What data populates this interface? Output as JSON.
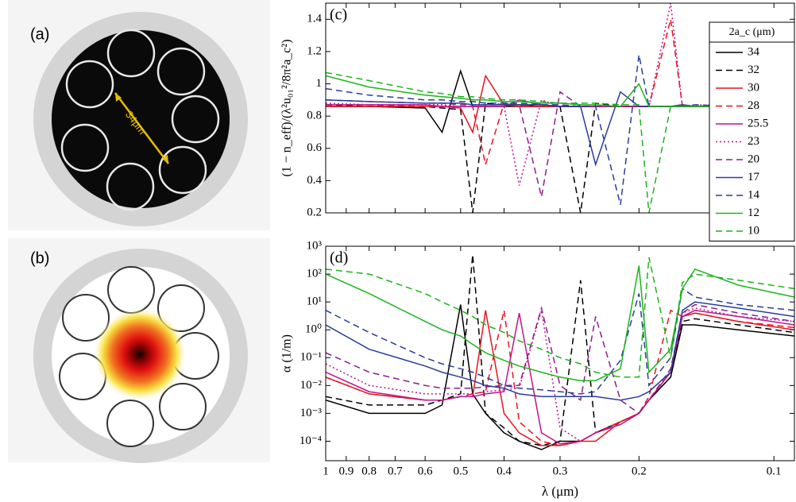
{
  "panels": {
    "a": {
      "label": "(a)",
      "annotation": "34μm"
    },
    "b": {
      "label": "(b)"
    }
  },
  "chart_data": [
    {
      "type": "line",
      "label": "(c)",
      "ylabel": "(1 − n_eff)/(λ²u₀₁²/8π²a_c²)",
      "legend_title": "2a_c (μm)",
      "legend": "right",
      "xscale": "log",
      "x": [
        1,
        0.8,
        0.6,
        0.55,
        0.5,
        0.47,
        0.44,
        0.4,
        0.37,
        0.33,
        0.3,
        0.27,
        0.25,
        0.22,
        0.2,
        0.19,
        0.17,
        0.16,
        0.15,
        0.12,
        0.09
      ],
      "xlim": [
        1,
        0.09
      ],
      "xticks": [
        1,
        0.9,
        0.8,
        0.7,
        0.6,
        0.5,
        0.4,
        0.3,
        0.2,
        0.1
      ],
      "ylim": [
        0.2,
        1.5
      ],
      "yticks": [
        0.2,
        0.4,
        0.6,
        0.8,
        1,
        1.2,
        1.4
      ],
      "series": [
        {
          "name": "34",
          "color": "#000000",
          "dash": "solid",
          "values": [
            0.86,
            0.86,
            0.85,
            0.7,
            1.08,
            0.86,
            0.86,
            0.86,
            0.86,
            0.86,
            0.86,
            0.86,
            0.86,
            0.86,
            0.86,
            0.86,
            0.86,
            0.86,
            0.86,
            0.86,
            0.86
          ]
        },
        {
          "name": "32",
          "color": "#000000",
          "dash": "dashed",
          "values": [
            0.87,
            0.86,
            0.86,
            0.85,
            0.84,
            0.2,
            0.88,
            0.87,
            0.87,
            0.86,
            0.86,
            0.2,
            0.88,
            0.86,
            0.86,
            0.86,
            0.86,
            0.86,
            0.86,
            0.86,
            0.86
          ]
        },
        {
          "name": "30",
          "color": "#e8141c",
          "dash": "solid",
          "values": [
            0.86,
            0.86,
            0.86,
            0.86,
            0.85,
            0.7,
            1.05,
            0.87,
            0.86,
            0.86,
            0.86,
            0.86,
            0.86,
            0.86,
            0.86,
            0.86,
            0.86,
            0.86,
            0.86,
            0.86,
            0.86
          ]
        },
        {
          "name": "28",
          "color": "#e8141c",
          "dash": "dashed",
          "values": [
            0.87,
            0.87,
            0.86,
            0.86,
            0.86,
            0.86,
            0.5,
            0.88,
            0.87,
            0.86,
            0.86,
            0.86,
            0.86,
            0.86,
            0.86,
            0.86,
            1.4,
            0.86,
            0.86,
            0.86,
            0.86
          ]
        },
        {
          "name": "25.5",
          "color": "#c0148c",
          "dash": "solid",
          "values": [
            0.87,
            0.87,
            0.87,
            0.86,
            0.86,
            0.86,
            0.86,
            0.86,
            0.9,
            0.87,
            0.86,
            0.86,
            0.86,
            0.86,
            0.86,
            0.86,
            0.86,
            0.87,
            0.86,
            0.86,
            0.86
          ]
        },
        {
          "name": "23",
          "color": "#c0148c",
          "dash": "dotted",
          "values": [
            0.88,
            0.87,
            0.87,
            0.87,
            0.86,
            0.86,
            0.86,
            0.86,
            0.37,
            0.9,
            0.86,
            0.86,
            0.86,
            0.86,
            0.86,
            0.86,
            1.5,
            0.86,
            0.87,
            0.86,
            0.86
          ]
        },
        {
          "name": "20",
          "color": "#8c1e8c",
          "dash": "dashed",
          "values": [
            0.9,
            0.89,
            0.88,
            0.88,
            0.87,
            0.87,
            0.87,
            0.87,
            0.87,
            0.3,
            0.95,
            0.86,
            0.86,
            0.86,
            0.86,
            0.86,
            0.86,
            0.86,
            0.86,
            0.86,
            0.86
          ]
        },
        {
          "name": "17",
          "color": "#2a3c9c",
          "dash": "solid",
          "values": [
            0.9,
            0.89,
            0.88,
            0.88,
            0.88,
            0.87,
            0.87,
            0.87,
            0.87,
            0.87,
            0.86,
            0.86,
            0.5,
            0.95,
            0.86,
            0.86,
            0.86,
            0.87,
            0.86,
            0.86,
            0.86
          ]
        },
        {
          "name": "14",
          "color": "#2a3c9c",
          "dash": "dashed",
          "values": [
            0.97,
            0.93,
            0.9,
            0.9,
            0.89,
            0.89,
            0.88,
            0.88,
            0.88,
            0.87,
            0.87,
            0.86,
            0.86,
            0.25,
            1.18,
            0.86,
            0.86,
            0.86,
            0.87,
            0.86,
            0.86
          ]
        },
        {
          "name": "12",
          "color": "#1cb41c",
          "dash": "solid",
          "values": [
            1.05,
            0.98,
            0.93,
            0.92,
            0.91,
            0.9,
            0.9,
            0.89,
            0.89,
            0.88,
            0.88,
            0.87,
            0.87,
            0.86,
            1.0,
            0.86,
            0.86,
            0.86,
            0.86,
            0.86,
            0.86
          ]
        },
        {
          "name": "10",
          "color": "#1cb41c",
          "dash": "dashed",
          "values": [
            1.07,
            1.02,
            0.95,
            0.94,
            0.92,
            0.92,
            0.91,
            0.9,
            0.9,
            0.89,
            0.88,
            0.88,
            0.88,
            0.87,
            0.87,
            0.2,
            0.86,
            0.86,
            0.86,
            0.86,
            0.86
          ]
        }
      ]
    },
    {
      "type": "line",
      "label": "(d)",
      "ylabel": "α (1/m)",
      "xlabel": "λ (μm)",
      "xscale": "log",
      "yscale": "log",
      "x": [
        1,
        0.8,
        0.6,
        0.55,
        0.5,
        0.47,
        0.44,
        0.4,
        0.37,
        0.33,
        0.3,
        0.27,
        0.25,
        0.22,
        0.2,
        0.19,
        0.17,
        0.16,
        0.15,
        0.12,
        0.09
      ],
      "xlim": [
        1,
        0.09
      ],
      "xticks": [
        1,
        0.9,
        0.8,
        0.7,
        0.6,
        0.5,
        0.4,
        0.3,
        0.2,
        0.1
      ],
      "ylim": [
        2e-05,
        1000
      ],
      "yticks": [
        {
          "value": 0.0001,
          "label": "10⁻⁴"
        },
        {
          "value": 0.001,
          "label": "10⁻³"
        },
        {
          "value": 0.01,
          "label": "10⁻²"
        },
        {
          "value": 0.1,
          "label": "10⁻¹"
        },
        {
          "value": 1,
          "label": "10⁰"
        },
        {
          "value": 10,
          "label": "10¹"
        },
        {
          "value": 100,
          "label": "10²"
        },
        {
          "value": 1000,
          "label": "10³"
        }
      ],
      "series": [
        {
          "color": "#000000",
          "dash": "solid",
          "values": [
            0.003,
            0.001,
            0.001,
            0.002,
            8,
            0.005,
            0.001,
            0.0002,
            0.0001,
            5e-05,
            0.0001,
            0.0001,
            0.0002,
            0.0005,
            0.001,
            0.003,
            0.02,
            1.5,
            1.5,
            1,
            0.6
          ]
        },
        {
          "color": "#000000",
          "dash": "dashed",
          "values": [
            0.004,
            0.002,
            0.002,
            0.003,
            0.005,
            500,
            0.001,
            0.0003,
            0.0001,
            7e-05,
            0.0001,
            60,
            0.0002,
            0.0005,
            0.001,
            0.003,
            0.02,
            2,
            2.5,
            1.5,
            0.8
          ]
        },
        {
          "color": "#e8141c",
          "dash": "solid",
          "values": [
            0.02,
            0.005,
            0.003,
            0.003,
            0.004,
            0.004,
            5,
            0.001,
            0.0002,
            7e-05,
            7e-05,
            0.0001,
            0.0001,
            0.0005,
            0.001,
            0.003,
            0.03,
            3,
            4,
            2,
            1
          ]
        },
        {
          "color": "#e8141c",
          "dash": "dashed",
          "values": [
            0.02,
            0.005,
            0.003,
            0.003,
            0.004,
            0.005,
            0.006,
            5,
            0.0005,
            0.0001,
            7e-05,
            0.0001,
            0.0002,
            0.0005,
            0.001,
            0.004,
            5,
            3,
            4,
            2,
            1.2
          ]
        },
        {
          "color": "#c0148c",
          "dash": "solid",
          "values": [
            0.03,
            0.006,
            0.003,
            0.003,
            0.004,
            0.004,
            0.005,
            0.006,
            4,
            0.0002,
            8e-05,
            0.0001,
            0.0002,
            0.0004,
            0.001,
            0.003,
            0.03,
            3,
            5,
            3,
            1.5
          ]
        },
        {
          "color": "#c0148c",
          "dash": "dotted",
          "values": [
            0.06,
            0.01,
            0.005,
            0.005,
            0.005,
            0.005,
            0.006,
            0.007,
            0.008,
            5,
            0.0003,
            0.0001,
            0.0002,
            0.0004,
            0.001,
            0.003,
            0.03,
            4,
            6,
            3,
            2
          ]
        },
        {
          "color": "#8c1e8c",
          "dash": "dashed",
          "values": [
            0.15,
            0.03,
            0.01,
            0.008,
            0.008,
            0.008,
            0.009,
            0.01,
            0.01,
            6,
            0.01,
            0.003,
            3,
            0.003,
            0.001,
            0.003,
            0.04,
            4,
            8,
            4,
            2
          ]
        },
        {
          "color": "#2a3c9c",
          "dash": "solid",
          "values": [
            1.5,
            0.2,
            0.05,
            0.03,
            0.02,
            0.015,
            0.01,
            0.008,
            0.005,
            0.004,
            0.004,
            0.004,
            0.004,
            0.003,
            0.004,
            0.006,
            0.03,
            5,
            10,
            6,
            3
          ]
        },
        {
          "color": "#2a3c9c",
          "dash": "dashed",
          "values": [
            5,
            0.8,
            0.1,
            0.06,
            0.04,
            0.03,
            0.02,
            0.01,
            0.008,
            0.007,
            0.006,
            0.005,
            0.006,
            0.08,
            20,
            0.01,
            0.1,
            30,
            15,
            8,
            5
          ]
        },
        {
          "color": "#1cb41c",
          "dash": "solid",
          "values": [
            100,
            20,
            2,
            1,
            0.6,
            0.3,
            0.15,
            0.08,
            0.05,
            0.03,
            0.02,
            0.015,
            0.015,
            0.04,
            200,
            0.03,
            0.2,
            30,
            150,
            40,
            15
          ]
        },
        {
          "color": "#1cb41c",
          "dash": "dashed",
          "values": [
            150,
            100,
            20,
            10,
            5,
            3,
            1.5,
            0.8,
            0.4,
            0.2,
            0.1,
            0.06,
            0.03,
            0.02,
            0.02,
            400,
            0.1,
            50,
            100,
            60,
            30
          ]
        }
      ]
    }
  ]
}
